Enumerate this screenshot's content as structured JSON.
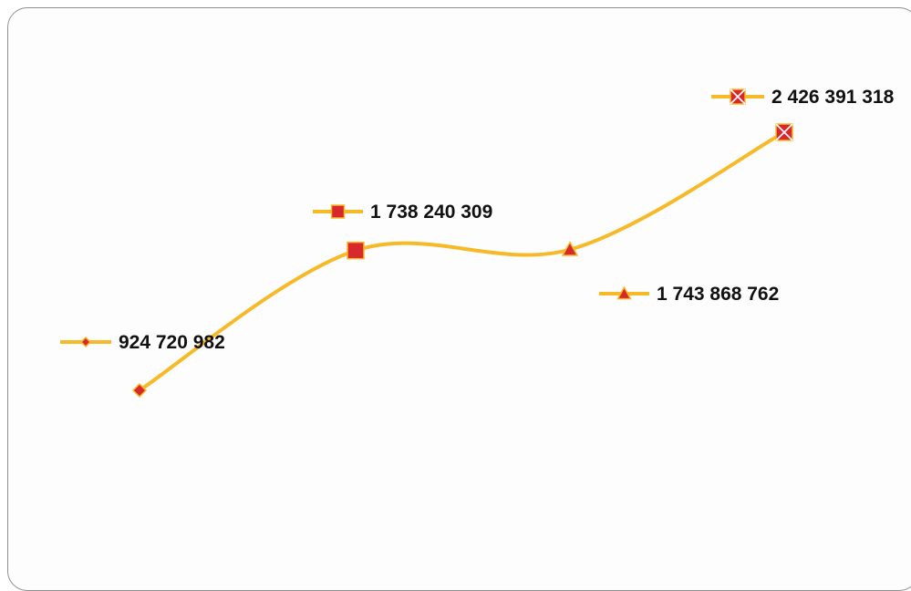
{
  "chart_data": {
    "type": "line",
    "title": "",
    "xlabel": "",
    "ylabel": "",
    "smooth": true,
    "grid": false,
    "legend": "none",
    "x": [
      1,
      2,
      3,
      4
    ],
    "values": [
      924720982,
      1738240309,
      1743868762,
      2426391318
    ],
    "value_labels": [
      "924 720 982",
      "1 738 240 309",
      "1 743 868 762",
      "2 426 391 318"
    ],
    "markers": [
      "diamond",
      "square",
      "triangle",
      "crossed-square"
    ],
    "colors": {
      "line": "#f6b928",
      "marker": "#d8282c",
      "marker_edge": "#f6b928",
      "text": "#111111"
    }
  }
}
